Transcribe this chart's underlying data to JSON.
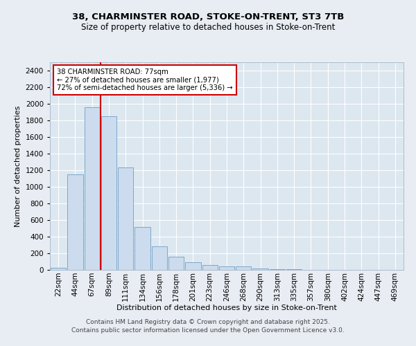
{
  "title_line1": "38, CHARMINSTER ROAD, STOKE-ON-TRENT, ST3 7TB",
  "title_line2": "Size of property relative to detached houses in Stoke-on-Trent",
  "xlabel": "Distribution of detached houses by size in Stoke-on-Trent",
  "ylabel": "Number of detached properties",
  "categories": [
    "22sqm",
    "44sqm",
    "67sqm",
    "89sqm",
    "111sqm",
    "134sqm",
    "156sqm",
    "178sqm",
    "201sqm",
    "223sqm",
    "246sqm",
    "268sqm",
    "290sqm",
    "313sqm",
    "335sqm",
    "357sqm",
    "380sqm",
    "402sqm",
    "424sqm",
    "447sqm",
    "469sqm"
  ],
  "values": [
    25,
    1150,
    1960,
    1850,
    1230,
    520,
    280,
    155,
    90,
    55,
    45,
    40,
    15,
    10,
    5,
    3,
    2,
    1,
    1,
    1,
    1
  ],
  "bar_color": "#ccdcee",
  "bar_edge_color": "#7ba7c9",
  "red_line_x": 2.5,
  "annotation_text": "38 CHARMINSTER ROAD: 77sqm\n← 27% of detached houses are smaller (1,977)\n72% of semi-detached houses are larger (5,336) →",
  "annotation_box_facecolor": "#ffffff",
  "annotation_box_edgecolor": "#cc0000",
  "ylim": [
    0,
    2500
  ],
  "yticks": [
    0,
    200,
    400,
    600,
    800,
    1000,
    1200,
    1400,
    1600,
    1800,
    2000,
    2200,
    2400
  ],
  "footer_line1": "Contains HM Land Registry data © Crown copyright and database right 2025.",
  "footer_line2": "Contains public sector information licensed under the Open Government Licence v3.0.",
  "bg_color": "#e8edf3",
  "plot_bg_color": "#dce7f0",
  "grid_color": "#ffffff",
  "title_fontsize": 9.5,
  "subtitle_fontsize": 8.5,
  "axis_label_fontsize": 8,
  "tick_fontsize": 7.5,
  "footer_fontsize": 6.5
}
